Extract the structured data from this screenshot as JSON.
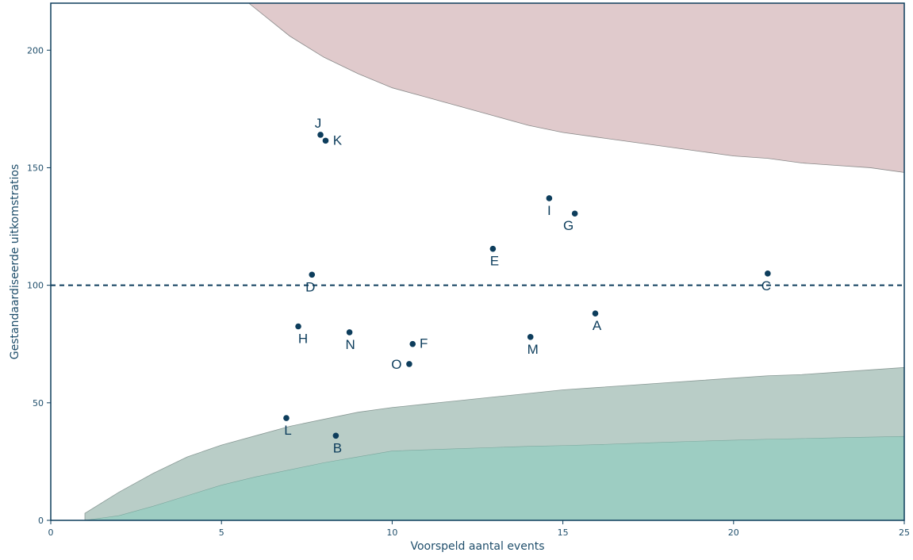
{
  "chart_data": {
    "type": "scatter",
    "title": "",
    "xlabel": "Voorspeld aantal events",
    "ylabel": "Gestandaardiseerde uitkomstratios",
    "xlim": [
      0,
      25
    ],
    "ylim": [
      0,
      220
    ],
    "xticks": [
      0,
      5,
      10,
      15,
      20,
      25
    ],
    "yticks": [
      0,
      50,
      100,
      150,
      200
    ],
    "reference_line": 100,
    "grid": false,
    "colors": {
      "axis": "#0d3d5c",
      "point": "#0d3d5c",
      "upper_band": "#e0cacc",
      "outer_lower_band": "#b9cdc7",
      "inner_lower_band": "#9dcdc2"
    },
    "bands": {
      "upper": {
        "x": [
          5.8,
          7,
          8,
          9,
          10,
          11,
          12,
          13,
          14,
          15,
          16,
          17,
          18,
          19,
          20,
          21,
          22,
          23,
          24,
          25
        ],
        "y": [
          220,
          206,
          197,
          190,
          184,
          180,
          176,
          172,
          168,
          165,
          163,
          161,
          159,
          157,
          155,
          154,
          152,
          151,
          150,
          148
        ]
      },
      "outer_lower": {
        "x": [
          1,
          2,
          3,
          4,
          5,
          6,
          7,
          8,
          9,
          10,
          11,
          12,
          13,
          14,
          15,
          16,
          17,
          18,
          19,
          20,
          21,
          22,
          23,
          24,
          25
        ],
        "y": [
          3,
          12,
          20,
          27,
          32,
          36,
          40,
          43,
          46,
          48,
          49.5,
          51,
          52.5,
          54,
          55.5,
          56.5,
          57.5,
          58.5,
          59.5,
          60.5,
          61.5,
          62,
          63,
          64,
          65
        ]
      },
      "inner_lower": {
        "x": [
          1,
          2,
          3,
          4,
          5,
          6,
          7,
          8,
          9,
          10,
          11,
          12,
          13,
          14,
          15,
          16,
          17,
          18,
          19,
          20,
          21,
          22,
          23,
          24,
          25
        ],
        "y": [
          0,
          2,
          6,
          10.5,
          15,
          18.5,
          21.5,
          24.5,
          27,
          29.5,
          30,
          30.5,
          31,
          31.5,
          31.8,
          32.2,
          32.7,
          33.2,
          33.7,
          34.1,
          34.5,
          34.8,
          35.1,
          35.4,
          35.7
        ]
      }
    },
    "points": [
      {
        "label": "A",
        "x": 15.95,
        "y": 88
      },
      {
        "label": "B",
        "x": 8.35,
        "y": 36
      },
      {
        "label": "C",
        "x": 21.0,
        "y": 105
      },
      {
        "label": "D",
        "x": 7.65,
        "y": 104.5
      },
      {
        "label": "E",
        "x": 12.95,
        "y": 115.5
      },
      {
        "label": "F",
        "x": 10.6,
        "y": 75
      },
      {
        "label": "G",
        "x": 15.35,
        "y": 130.5
      },
      {
        "label": "H",
        "x": 7.25,
        "y": 82.5
      },
      {
        "label": "I",
        "x": 14.6,
        "y": 137
      },
      {
        "label": "J",
        "x": 7.9,
        "y": 164
      },
      {
        "label": "K",
        "x": 8.05,
        "y": 161.5
      },
      {
        "label": "L",
        "x": 6.9,
        "y": 43.5
      },
      {
        "label": "M",
        "x": 14.05,
        "y": 78
      },
      {
        "label": "N",
        "x": 8.75,
        "y": 80
      },
      {
        "label": "O",
        "x": 10.5,
        "y": 66.5
      }
    ]
  }
}
